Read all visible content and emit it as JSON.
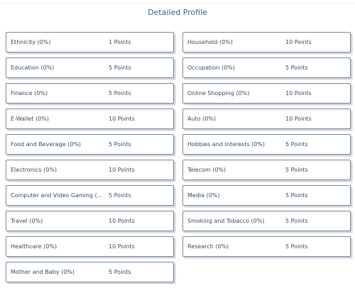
{
  "page": {
    "title": "Detailed Profile"
  },
  "profile_items": [
    {
      "label": "Ethnicity (0%)",
      "points": "1 Points"
    },
    {
      "label": "Household (0%)",
      "points": "10 Points"
    },
    {
      "label": "Education (0%)",
      "points": "5 Points"
    },
    {
      "label": "Occupation (0%)",
      "points": "5 Points"
    },
    {
      "label": "Finance (0%)",
      "points": "5 Points"
    },
    {
      "label": "Online Shopping (0%)",
      "points": "10 Points"
    },
    {
      "label": "E-Wallet (0%)",
      "points": "10 Points"
    },
    {
      "label": "Auto (0%)",
      "points": "10 Points"
    },
    {
      "label": "Food and Beverage (0%)",
      "points": "5 Points"
    },
    {
      "label": "Hobbies and Interests (0%)",
      "points": "5 Points"
    },
    {
      "label": "Electronics (0%)",
      "points": "10 Points"
    },
    {
      "label": "Telecom (0%)",
      "points": "5 Points"
    },
    {
      "label": "Computer and Video Gaming (...",
      "points": "5 Points"
    },
    {
      "label": "Media (0%)",
      "points": "5 Points"
    },
    {
      "label": "Travel (0%)",
      "points": "10 Points"
    },
    {
      "label": "Smoking and Tobacco (0%)",
      "points": "5 Points"
    },
    {
      "label": "Healthcare (0%)",
      "points": "10 Points"
    },
    {
      "label": "Research (0%)",
      "points": "5 Points"
    },
    {
      "label": "Mother and Baby (0%)",
      "points": "5 Points"
    }
  ]
}
